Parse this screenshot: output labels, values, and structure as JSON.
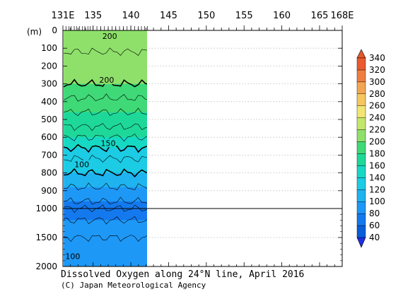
{
  "chart_data": {
    "type": "heatmap",
    "title": "Dissolved Oxygen along 24°N line, April 2016",
    "credit": "(C) Japan Meteorological Agency",
    "x_ticks": [
      {
        "value": 131,
        "label": "131E"
      },
      {
        "value": 135,
        "label": "135"
      },
      {
        "value": 140,
        "label": "140"
      },
      {
        "value": 145,
        "label": "145"
      },
      {
        "value": 150,
        "label": "150"
      },
      {
        "value": 155,
        "label": "155"
      },
      {
        "value": 160,
        "label": "160"
      },
      {
        "value": 165,
        "label": "165"
      },
      {
        "value": 168,
        "label": "168E"
      }
    ],
    "x_range": [
      131,
      168
    ],
    "y_unit": "(m)",
    "y_ticks_upper": [
      0,
      100,
      200,
      300,
      400,
      500,
      600,
      700,
      800,
      900,
      1000
    ],
    "y_ticks_lower": [
      1500,
      2000
    ],
    "y_break_depth": 1000,
    "data_extent_lon": [
      131.2,
      142.4
    ],
    "station_marks_lon": [
      131.4,
      131.8,
      132.1,
      132.5,
      132.8,
      133.2,
      133.6,
      133.9,
      134.3,
      134.6,
      135.0,
      135.5,
      136.0,
      136.5,
      137.0,
      137.5,
      138.0,
      138.5,
      139.0,
      139.5,
      140.0,
      140.5,
      141.0,
      141.4,
      141.8,
      142.2
    ],
    "colorbar": {
      "levels": [
        40,
        60,
        80,
        100,
        120,
        140,
        160,
        180,
        200,
        220,
        240,
        260,
        280,
        300,
        320,
        340
      ],
      "colors": [
        "#0a5ed8",
        "#1479ee",
        "#1e98f6",
        "#1fb3f0",
        "#1ccbe4",
        "#16d9c4",
        "#1ed89a",
        "#3fd977",
        "#8ee06a",
        "#c3e76a",
        "#f1e672",
        "#f5c75e",
        "#f3a652",
        "#ef7f40",
        "#ea5a2e",
        "#dd3f25"
      ],
      "under_color": "#1f2ee6",
      "over_color": "#e35a2a"
    },
    "depth_bands": [
      {
        "from": 0,
        "to": 120,
        "value": 215
      },
      {
        "from": 120,
        "to": 300,
        "value": 205
      },
      {
        "from": 300,
        "to": 380,
        "value": 195
      },
      {
        "from": 380,
        "to": 460,
        "value": 185
      },
      {
        "from": 460,
        "to": 540,
        "value": 170
      },
      {
        "from": 540,
        "to": 600,
        "value": 160
      },
      {
        "from": 600,
        "to": 660,
        "value": 150
      },
      {
        "from": 660,
        "to": 720,
        "value": 135
      },
      {
        "from": 720,
        "to": 800,
        "value": 122
      },
      {
        "from": 800,
        "to": 880,
        "value": 110
      },
      {
        "from": 880,
        "to": 960,
        "value": 95
      },
      {
        "from": 960,
        "to": 1000,
        "value": 75
      },
      {
        "from": 1000,
        "to": 1200,
        "value": 65
      },
      {
        "from": 1200,
        "to": 1500,
        "value": 80
      },
      {
        "from": 1500,
        "to": 2000,
        "value": 95
      }
    ],
    "contour_labels": [
      {
        "text": "200",
        "lon": 137.2,
        "depth": 40
      },
      {
        "text": "200",
        "lon": 136.8,
        "depth": 285
      },
      {
        "text": "150",
        "lon": 137.0,
        "depth": 640
      },
      {
        "text": "100",
        "lon": 133.5,
        "depth": 760
      },
      {
        "text": "100",
        "lon": 132.3,
        "depth": 1850
      }
    ]
  }
}
